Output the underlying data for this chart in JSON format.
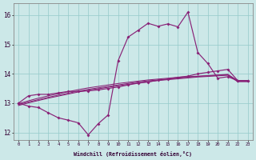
{
  "bg_color": "#cce8e8",
  "line_color": "#882277",
  "grid_color": "#99cccc",
  "xlabel": "Windchill (Refroidissement éolien,°C)",
  "xlim_min": -0.5,
  "xlim_max": 23.5,
  "ylim_min": 11.75,
  "ylim_max": 16.4,
  "x_ticks": [
    0,
    1,
    2,
    3,
    4,
    5,
    6,
    7,
    8,
    9,
    10,
    11,
    12,
    13,
    14,
    15,
    16,
    17,
    18,
    19,
    20,
    21,
    22,
    23
  ],
  "y_ticks": [
    12,
    13,
    14,
    15,
    16
  ],
  "hours": [
    0,
    1,
    2,
    3,
    4,
    5,
    6,
    7,
    8,
    9,
    10,
    11,
    12,
    13,
    14,
    15,
    16,
    17,
    18,
    19,
    20,
    21,
    22,
    23
  ],
  "windchill": [
    13.0,
    12.9,
    12.85,
    12.67,
    12.5,
    12.42,
    12.33,
    11.92,
    12.3,
    12.6,
    14.45,
    15.25,
    15.48,
    15.72,
    15.62,
    15.7,
    15.6,
    16.1,
    14.72,
    14.35,
    13.85,
    13.9,
    13.77,
    13.77
  ],
  "upper_line": [
    13.0,
    13.25,
    13.3,
    13.3,
    13.35,
    13.4,
    13.4,
    13.42,
    13.45,
    13.5,
    13.55,
    13.62,
    13.68,
    13.72,
    13.78,
    13.82,
    13.88,
    13.92,
    14.0,
    14.05,
    14.1,
    14.15,
    13.77,
    13.77
  ],
  "trend_upper": [
    12.98,
    13.08,
    13.17,
    13.25,
    13.32,
    13.39,
    13.46,
    13.52,
    13.57,
    13.62,
    13.67,
    13.71,
    13.75,
    13.79,
    13.82,
    13.85,
    13.88,
    13.9,
    13.92,
    13.94,
    13.96,
    13.98,
    13.77,
    13.77
  ],
  "trend_mid": [
    12.95,
    13.04,
    13.12,
    13.2,
    13.27,
    13.34,
    13.41,
    13.47,
    13.52,
    13.57,
    13.62,
    13.67,
    13.72,
    13.76,
    13.79,
    13.82,
    13.85,
    13.88,
    13.91,
    13.93,
    13.95,
    13.97,
    13.75,
    13.75
  ],
  "trend_lower": [
    12.92,
    13.01,
    13.09,
    13.17,
    13.24,
    13.31,
    13.38,
    13.44,
    13.49,
    13.54,
    13.59,
    13.64,
    13.69,
    13.73,
    13.77,
    13.8,
    13.83,
    13.86,
    13.89,
    13.91,
    13.93,
    13.95,
    13.73,
    13.73
  ]
}
